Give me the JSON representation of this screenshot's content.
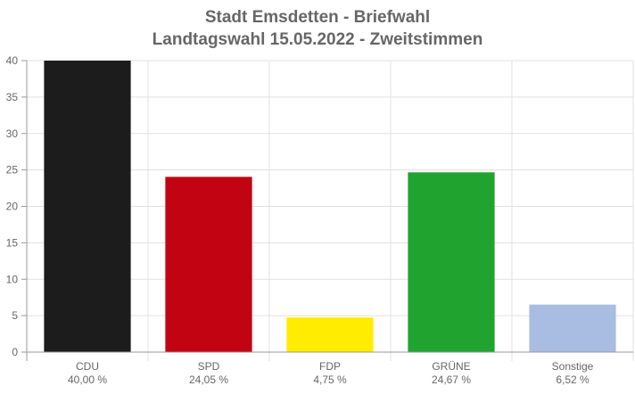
{
  "chart_data": {
    "type": "bar",
    "title": "Stadt Emsdetten - Briefwahl",
    "subtitle": "Landtagswahl 15.05.2022  - Zweitstimmen",
    "categories": [
      "CDU",
      "SPD",
      "FDP",
      "GRÜNE",
      "Sonstige"
    ],
    "values": [
      40.0,
      24.05,
      4.75,
      24.67,
      6.52
    ],
    "value_labels": [
      "40,00 %",
      "24,05 %",
      "4,75 %",
      "24,67 %",
      "6,52 %"
    ],
    "colors": [
      "#1c1c1c",
      "#c20312",
      "#ffec00",
      "#21a42f",
      "#a9bde3"
    ],
    "ylim": [
      0,
      40
    ],
    "yticks": [
      "0",
      "5",
      "10",
      "15",
      "20",
      "25",
      "30",
      "35",
      "40"
    ],
    "xlabel": "",
    "ylabel": "",
    "grid": true
  }
}
